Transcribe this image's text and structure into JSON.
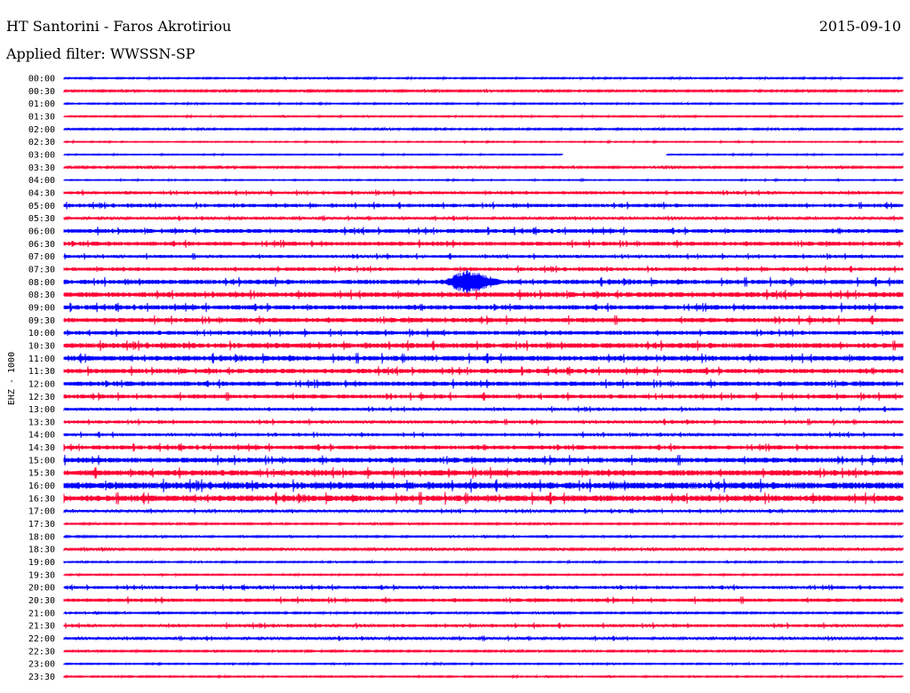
{
  "header": {
    "title": "HT Santorini - Faros Akrotiriou",
    "date": "2015-09-10",
    "filter": "Applied filter: WWSSN-SP"
  },
  "chart_data": {
    "type": "line",
    "title": "HT Santorini - Faros Akrotiriou",
    "ylabel": "EHZ - 1000",
    "colors": {
      "blue": "#0000ff",
      "red": "#ff0033"
    },
    "traces": [
      {
        "label": "00:00",
        "color": "blue",
        "amp": 0.5
      },
      {
        "label": "00:30",
        "color": "red",
        "amp": 0.7
      },
      {
        "label": "01:00",
        "color": "blue",
        "amp": 0.5
      },
      {
        "label": "01:30",
        "color": "red",
        "amp": 0.5
      },
      {
        "label": "02:00",
        "color": "blue",
        "amp": 0.6
      },
      {
        "label": "02:30",
        "color": "red",
        "amp": 0.4
      },
      {
        "label": "03:00",
        "color": "blue",
        "amp": 0.4,
        "gap": [
          0.595,
          0.718
        ]
      },
      {
        "label": "03:30",
        "color": "red",
        "amp": 0.7
      },
      {
        "label": "04:00",
        "color": "blue",
        "amp": 0.4
      },
      {
        "label": "04:30",
        "color": "red",
        "amp": 1.2
      },
      {
        "label": "05:00",
        "color": "blue",
        "amp": 1.4
      },
      {
        "label": "05:30",
        "color": "red",
        "amp": 1.0
      },
      {
        "label": "06:00",
        "color": "blue",
        "amp": 1.6
      },
      {
        "label": "06:30",
        "color": "red",
        "amp": 1.6
      },
      {
        "label": "07:00",
        "color": "blue",
        "amp": 1.2
      },
      {
        "label": "07:30",
        "color": "red",
        "amp": 1.4
      },
      {
        "label": "08:00",
        "color": "blue",
        "amp": 1.8,
        "event": {
          "start": 0.45,
          "peak": 0.48,
          "end": 0.52,
          "amp": 16
        }
      },
      {
        "label": "08:30",
        "color": "red",
        "amp": 2.0
      },
      {
        "label": "09:00",
        "color": "blue",
        "amp": 1.8
      },
      {
        "label": "09:30",
        "color": "red",
        "amp": 1.8
      },
      {
        "label": "10:00",
        "color": "blue",
        "amp": 1.6
      },
      {
        "label": "10:30",
        "color": "red",
        "amp": 2.0
      },
      {
        "label": "11:00",
        "color": "blue",
        "amp": 2.0
      },
      {
        "label": "11:30",
        "color": "red",
        "amp": 1.8
      },
      {
        "label": "12:00",
        "color": "blue",
        "amp": 1.8
      },
      {
        "label": "12:30",
        "color": "red",
        "amp": 1.6
      },
      {
        "label": "13:00",
        "color": "blue",
        "amp": 1.2
      },
      {
        "label": "13:30",
        "color": "red",
        "amp": 1.2
      },
      {
        "label": "14:00",
        "color": "blue",
        "amp": 1.2
      },
      {
        "label": "14:30",
        "color": "red",
        "amp": 1.6
      },
      {
        "label": "15:00",
        "color": "blue",
        "amp": 2.0
      },
      {
        "label": "15:30",
        "color": "red",
        "amp": 2.2
      },
      {
        "label": "16:00",
        "color": "blue",
        "amp": 2.6
      },
      {
        "label": "16:30",
        "color": "red",
        "amp": 2.4
      },
      {
        "label": "17:00",
        "color": "blue",
        "amp": 1.0
      },
      {
        "label": "17:30",
        "color": "red",
        "amp": 0.6
      },
      {
        "label": "18:00",
        "color": "blue",
        "amp": 0.6
      },
      {
        "label": "18:30",
        "color": "red",
        "amp": 0.8
      },
      {
        "label": "19:00",
        "color": "blue",
        "amp": 0.5
      },
      {
        "label": "19:30",
        "color": "red",
        "amp": 0.5
      },
      {
        "label": "20:00",
        "color": "blue",
        "amp": 1.2
      },
      {
        "label": "20:30",
        "color": "red",
        "amp": 1.4
      },
      {
        "label": "21:00",
        "color": "blue",
        "amp": 0.6
      },
      {
        "label": "21:30",
        "color": "red",
        "amp": 1.2
      },
      {
        "label": "22:00",
        "color": "blue",
        "amp": 1.0
      },
      {
        "label": "22:30",
        "color": "red",
        "amp": 0.6
      },
      {
        "label": "23:00",
        "color": "blue",
        "amp": 0.5
      },
      {
        "label": "23:30",
        "color": "red",
        "amp": 0.5
      }
    ]
  }
}
